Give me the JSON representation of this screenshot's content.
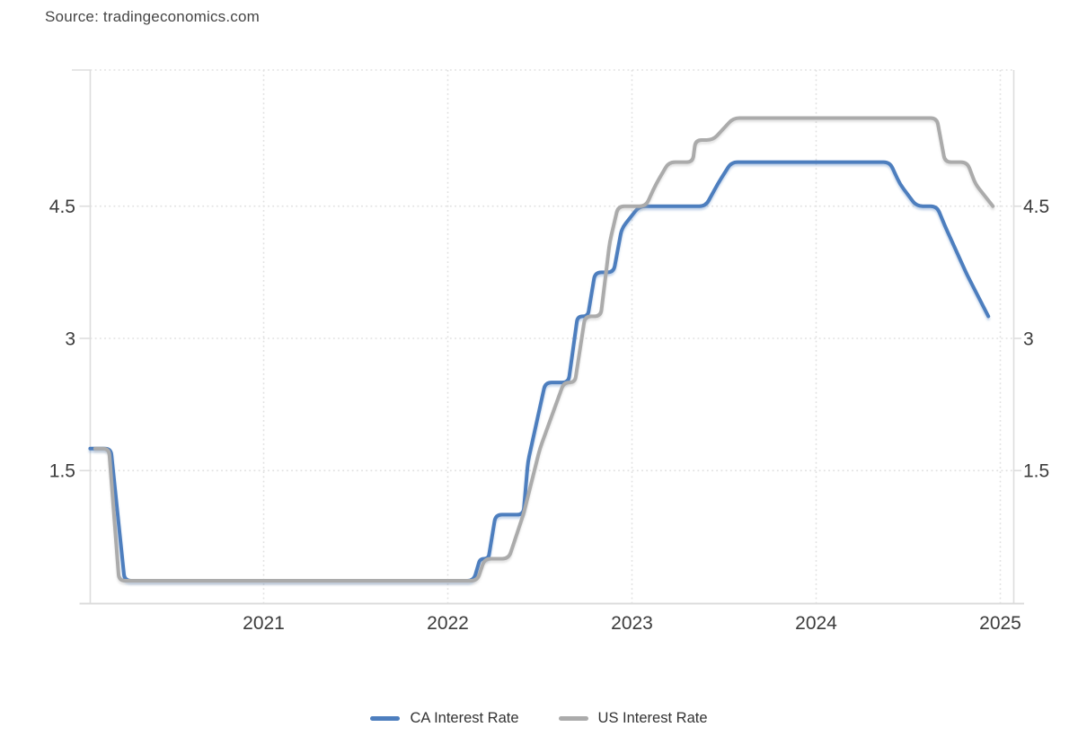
{
  "source_label": "Source: tradingeconomics.com",
  "chart_data": {
    "type": "line",
    "title": "",
    "xlabel": "",
    "ylabel": "",
    "x_axis": {
      "ticks": [
        "2021",
        "2022",
        "2023",
        "2024",
        "2025"
      ],
      "tick_years": [
        2021,
        2022,
        2023,
        2024,
        2025
      ],
      "range_decimal_years": [
        2020.06,
        2025.07
      ],
      "grid": "dotted"
    },
    "y_axis": {
      "ticks": [
        "4.5",
        "3",
        "1.5"
      ],
      "tick_values": [
        4.5,
        3,
        1.5
      ],
      "range": [
        0.0,
        6.05
      ],
      "labels_on_both_sides": true,
      "top_gridline_unlabeled": true,
      "grid": "dotted"
    },
    "legend_position": "bottom",
    "background_color": "#ffffff",
    "grid_color": "#e0e0e0",
    "axis_line_color": "#dddddd",
    "text_color": "#3c3c3c",
    "series": [
      {
        "name": "CA Interest Rate",
        "color": "#4D7EBE",
        "unit": "percent",
        "points": [
          [
            2020.058,
            1.75
          ],
          [
            2020.17,
            1.75
          ],
          [
            2020.245,
            0.25
          ],
          [
            2022.14,
            0.25
          ],
          [
            2022.175,
            0.5
          ],
          [
            2022.22,
            0.5
          ],
          [
            2022.26,
            1.0
          ],
          [
            2022.41,
            1.0
          ],
          [
            2022.435,
            1.6
          ],
          [
            2022.53,
            2.5
          ],
          [
            2022.655,
            2.5
          ],
          [
            2022.705,
            3.25
          ],
          [
            2022.76,
            3.25
          ],
          [
            2022.8,
            3.75
          ],
          [
            2022.9,
            3.75
          ],
          [
            2022.945,
            4.25
          ],
          [
            2023.04,
            4.5
          ],
          [
            2023.4,
            4.5
          ],
          [
            2023.465,
            4.75
          ],
          [
            2023.54,
            5.0
          ],
          [
            2024.4,
            5.0
          ],
          [
            2024.455,
            4.75
          ],
          [
            2024.545,
            4.5
          ],
          [
            2024.655,
            4.5
          ],
          [
            2024.705,
            4.25
          ],
          [
            2024.82,
            3.72
          ],
          [
            2024.935,
            3.25
          ]
        ]
      },
      {
        "name": "US Interest Rate",
        "color": "#ABABAB",
        "unit": "percent",
        "points": [
          [
            2020.085,
            1.75
          ],
          [
            2020.16,
            1.75
          ],
          [
            2020.215,
            0.25
          ],
          [
            2022.16,
            0.25
          ],
          [
            2022.2,
            0.5
          ],
          [
            2022.33,
            0.5
          ],
          [
            2022.41,
            1.0
          ],
          [
            2022.5,
            1.75
          ],
          [
            2022.63,
            2.5
          ],
          [
            2022.69,
            2.5
          ],
          [
            2022.745,
            3.25
          ],
          [
            2022.83,
            3.25
          ],
          [
            2022.88,
            4.1
          ],
          [
            2022.925,
            4.5
          ],
          [
            2023.075,
            4.5
          ],
          [
            2023.13,
            4.75
          ],
          [
            2023.2,
            5.0
          ],
          [
            2023.33,
            5.0
          ],
          [
            2023.345,
            5.25
          ],
          [
            2023.44,
            5.25
          ],
          [
            2023.55,
            5.5
          ],
          [
            2024.655,
            5.5
          ],
          [
            2024.7,
            5.0
          ],
          [
            2024.82,
            5.0
          ],
          [
            2024.865,
            4.75
          ],
          [
            2024.96,
            4.5
          ]
        ]
      }
    ]
  }
}
